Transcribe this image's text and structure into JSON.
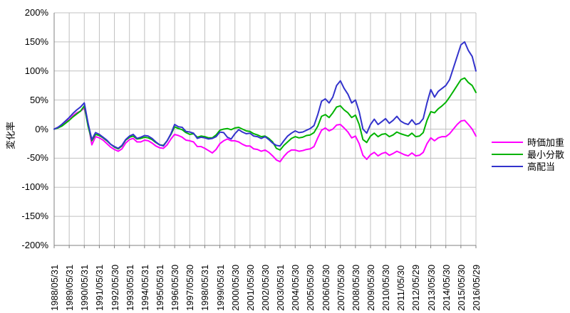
{
  "chart": {
    "y_axis": {
      "title": "変化率",
      "ticks": [
        {
          "label": "200%",
          "value": 200
        },
        {
          "label": "150%",
          "value": 150
        },
        {
          "label": "100%",
          "value": 100
        },
        {
          "label": "50%",
          "value": 50
        },
        {
          "label": "0%",
          "value": 0
        },
        {
          "label": "-50%",
          "value": -50
        },
        {
          "label": "-100%",
          "value": -100
        },
        {
          "label": "-150%",
          "value": -150
        },
        {
          "label": "-200%",
          "value": -200
        }
      ]
    },
    "x_axis": {
      "tick_labels": [
        "1988/05/31",
        "1989/05/31",
        "1990/05/31",
        "1991/05/31",
        "1992/05/30",
        "1993/05/31",
        "1994/05/31",
        "1995/05/31",
        "1996/05/30",
        "1997/05/30",
        "1998/05/31",
        "1999/05/31",
        "2000/05/30",
        "2001/05/30",
        "2002/05/30",
        "2003/05/31",
        "2004/05/30",
        "2005/05/30",
        "2006/05/30",
        "2007/05/30",
        "2008/05/30",
        "2009/05/30",
        "2010/05/30",
        "2011/05/30",
        "2012/05/29",
        "2013/05/30",
        "2014/05/30",
        "2015/05/30",
        "2016/05/29"
      ]
    },
    "legend": [
      {
        "label": "時価加重",
        "color": "#FF00FF"
      },
      {
        "label": "最小分散",
        "color": "#00B300"
      },
      {
        "label": "高配当",
        "color": "#3333CC"
      }
    ],
    "colors": {
      "gridline": "#C0C0C0",
      "axis": "#808080",
      "background": "#FFFFFF",
      "text": "#000000"
    }
  },
  "chart_data": {
    "type": "line",
    "title": "",
    "xlabel": "",
    "ylabel": "変化率",
    "ylim": [
      -200,
      200
    ],
    "y_tick_step_percent": 50,
    "grid": true,
    "legend_position": "right",
    "x_start": "1988/05",
    "x_end": "2016/05",
    "x_step_months": 3,
    "x_note": "values are quarterly estimates (percent change) read from the plot; axis shows yearly tick labels",
    "categories_shown": [
      "1988/05/31",
      "1989/05/31",
      "1990/05/31",
      "1991/05/31",
      "1992/05/30",
      "1993/05/31",
      "1994/05/31",
      "1995/05/31",
      "1996/05/30",
      "1997/05/30",
      "1998/05/31",
      "1999/05/31",
      "2000/05/30",
      "2001/05/30",
      "2002/05/30",
      "2003/05/31",
      "2004/05/30",
      "2005/05/30",
      "2006/05/30",
      "2007/05/30",
      "2008/05/30",
      "2009/05/30",
      "2010/05/30",
      "2011/05/30",
      "2012/05/29",
      "2013/05/30",
      "2014/05/30",
      "2015/05/30",
      "2016/05/29"
    ],
    "series": [
      {
        "name": "時価加重",
        "color": "#FF00FF",
        "values": [
          0,
          3,
          7,
          13,
          16,
          23,
          28,
          31,
          36,
          10,
          -27,
          -13,
          -15,
          -19,
          -25,
          -31,
          -35,
          -38,
          -34,
          -24,
          -18,
          -16,
          -22,
          -22,
          -19,
          -20,
          -24,
          -29,
          -32,
          -33,
          -27,
          -17,
          -9,
          -11,
          -14,
          -19,
          -20,
          -22,
          -30,
          -30,
          -33,
          -37,
          -41,
          -35,
          -25,
          -20,
          -17,
          -20,
          -20,
          -22,
          -26,
          -29,
          -29,
          -34,
          -35,
          -38,
          -36,
          -40,
          -46,
          -53,
          -56,
          -47,
          -40,
          -36,
          -36,
          -38,
          -37,
          -35,
          -34,
          -30,
          -15,
          -2,
          2,
          -3,
          0,
          7,
          8,
          2,
          -5,
          -15,
          -12,
          -25,
          -45,
          -52,
          -44,
          -40,
          -46,
          -42,
          -40,
          -45,
          -42,
          -38,
          -41,
          -44,
          -46,
          -41,
          -46,
          -45,
          -40,
          -25,
          -15,
          -20,
          -15,
          -13,
          -13,
          -8,
          0,
          8,
          14,
          15,
          8,
          0,
          -12
        ]
      },
      {
        "name": "最小分散",
        "color": "#00B300",
        "values": [
          0,
          2,
          5,
          10,
          15,
          21,
          26,
          31,
          40,
          5,
          -20,
          -9,
          -11,
          -15,
          -20,
          -26,
          -31,
          -34,
          -29,
          -19,
          -14,
          -12,
          -17,
          -16,
          -14,
          -15,
          -18,
          -23,
          -27,
          -28,
          -20,
          -9,
          4,
          1,
          -1,
          -6,
          -9,
          -8,
          -14,
          -12,
          -13,
          -15,
          -15,
          -10,
          -2,
          0,
          1,
          -1,
          2,
          3,
          0,
          -3,
          -4,
          -8,
          -10,
          -13,
          -12,
          -16,
          -22,
          -33,
          -36,
          -28,
          -22,
          -16,
          -13,
          -15,
          -14,
          -11,
          -10,
          -6,
          5,
          22,
          25,
          20,
          28,
          38,
          40,
          33,
          28,
          20,
          24,
          8,
          -18,
          -23,
          -12,
          -7,
          -13,
          -9,
          -8,
          -13,
          -10,
          -5,
          -8,
          -10,
          -12,
          -7,
          -13,
          -12,
          -6,
          15,
          30,
          28,
          35,
          40,
          46,
          55,
          65,
          75,
          85,
          88,
          80,
          75,
          63
        ]
      },
      {
        "name": "高配当",
        "color": "#3333CC",
        "values": [
          0,
          3,
          8,
          14,
          20,
          27,
          33,
          38,
          45,
          10,
          -18,
          -6,
          -9,
          -14,
          -19,
          -26,
          -30,
          -33,
          -28,
          -18,
          -12,
          -9,
          -16,
          -14,
          -11,
          -12,
          -16,
          -22,
          -27,
          -29,
          -20,
          -8,
          8,
          4,
          3,
          -4,
          -5,
          -7,
          -16,
          -14,
          -15,
          -17,
          -16,
          -13,
          -5,
          -6,
          -14,
          -17,
          -8,
          -1,
          -5,
          -8,
          -7,
          -12,
          -13,
          -16,
          -13,
          -18,
          -24,
          -28,
          -29,
          -20,
          -12,
          -7,
          -3,
          -6,
          -5,
          -2,
          1,
          6,
          25,
          48,
          52,
          45,
          55,
          75,
          83,
          70,
          60,
          45,
          50,
          30,
          0,
          -7,
          8,
          17,
          8,
          13,
          18,
          10,
          15,
          22,
          14,
          10,
          8,
          16,
          8,
          10,
          18,
          45,
          68,
          55,
          65,
          70,
          75,
          85,
          105,
          125,
          145,
          150,
          135,
          125,
          100
        ]
      }
    ]
  }
}
